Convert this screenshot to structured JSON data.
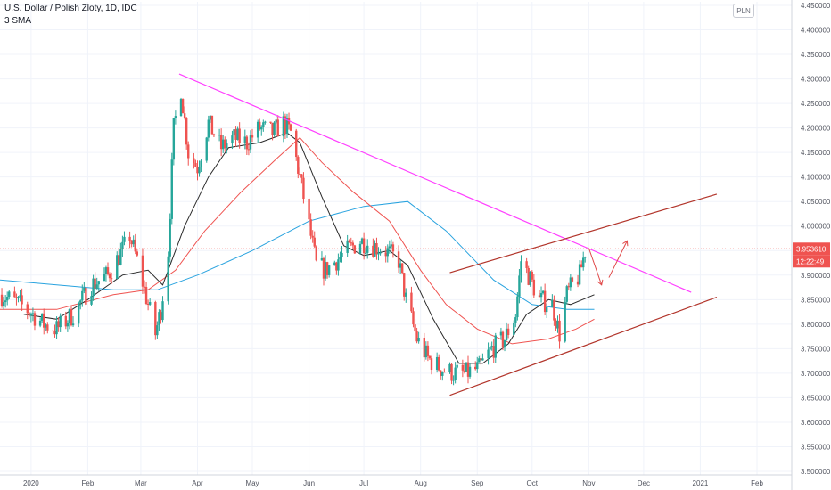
{
  "header": {
    "title": "U.S. Dollar / Polish Zloty, 1D, IDC",
    "study": "3 SMA"
  },
  "currency_button": "PLN",
  "price_badges": {
    "last_price": "3.953610",
    "countdown": "12:22:49"
  },
  "colors": {
    "up": "#26a69a",
    "down": "#ef5350",
    "trendline": "#ff40ff",
    "channel": "#b2352b",
    "sma_fast": "#2a2a2a",
    "sma_mid": "#ef5350",
    "sma_slow": "#29a3df",
    "arrow": "#e04848",
    "last_price_line": "#ef5350"
  },
  "chart_data": {
    "type": "candlestick",
    "title": "U.S. Dollar / Polish Zloty, 1D, IDC",
    "x_ticks": [
      "2020",
      "Feb",
      "Mar",
      "Apr",
      "May",
      "Jun",
      "Jul",
      "Aug",
      "Sep",
      "Oct",
      "Nov",
      "Dec",
      "2021",
      "Feb"
    ],
    "y_ticks": [
      "4.450000",
      "4.400000",
      "4.350000",
      "4.300000",
      "4.250000",
      "4.200000",
      "4.150000",
      "4.100000",
      "4.050000",
      "4.000000",
      "3.950000",
      "3.900000",
      "3.850000",
      "3.800000",
      "3.750000",
      "3.700000",
      "3.650000",
      "3.600000",
      "3.550000",
      "3.500000"
    ],
    "ylim": [
      3.5,
      4.45
    ],
    "xlim": [
      "2019-12-15",
      "2021-02-20"
    ],
    "last_price": 3.95361,
    "close_path": [
      [
        "2019-12-16",
        3.86
      ],
      [
        "2019-12-26",
        3.84
      ],
      [
        "2020-01-02",
        3.82
      ],
      [
        "2020-01-08",
        3.8
      ],
      [
        "2020-01-15",
        3.79
      ],
      [
        "2020-01-24",
        3.82
      ],
      [
        "2020-02-03",
        3.88
      ],
      [
        "2020-02-12",
        3.9
      ],
      [
        "2020-02-20",
        3.95
      ],
      [
        "2020-02-24",
        3.98
      ],
      [
        "2020-02-28",
        3.93
      ],
      [
        "2020-03-03",
        3.87
      ],
      [
        "2020-03-09",
        3.78
      ],
      [
        "2020-03-12",
        3.83
      ],
      [
        "2020-03-16",
        3.95
      ],
      [
        "2020-03-19",
        4.2
      ],
      [
        "2020-03-23",
        4.28
      ],
      [
        "2020-03-27",
        4.15
      ],
      [
        "2020-04-01",
        4.12
      ],
      [
        "2020-04-07",
        4.21
      ],
      [
        "2020-04-14",
        4.16
      ],
      [
        "2020-04-21",
        4.18
      ],
      [
        "2020-04-28",
        4.17
      ],
      [
        "2020-05-05",
        4.2
      ],
      [
        "2020-05-12",
        4.19
      ],
      [
        "2020-05-18",
        4.21
      ],
      [
        "2020-05-22",
        4.19
      ],
      [
        "2020-05-27",
        4.1
      ],
      [
        "2020-06-01",
        4.0
      ],
      [
        "2020-06-05",
        3.92
      ],
      [
        "2020-06-10",
        3.91
      ],
      [
        "2020-06-16",
        3.93
      ],
      [
        "2020-06-22",
        3.95
      ],
      [
        "2020-06-29",
        3.97
      ],
      [
        "2020-07-06",
        3.96
      ],
      [
        "2020-07-13",
        3.95
      ],
      [
        "2020-07-20",
        3.93
      ],
      [
        "2020-07-24",
        3.85
      ],
      [
        "2020-07-30",
        3.77
      ],
      [
        "2020-08-05",
        3.73
      ],
      [
        "2020-08-12",
        3.71
      ],
      [
        "2020-08-19",
        3.7
      ],
      [
        "2020-08-26",
        3.7
      ],
      [
        "2020-09-02",
        3.71
      ],
      [
        "2020-09-09",
        3.75
      ],
      [
        "2020-09-16",
        3.77
      ],
      [
        "2020-09-22",
        3.82
      ],
      [
        "2020-09-25",
        3.93
      ],
      [
        "2020-09-29",
        3.9
      ],
      [
        "2020-10-05",
        3.85
      ],
      [
        "2020-10-12",
        3.84
      ],
      [
        "2020-10-16",
        3.78
      ],
      [
        "2020-10-20",
        3.86
      ],
      [
        "2020-10-23",
        3.88
      ],
      [
        "2020-10-27",
        3.9
      ],
      [
        "2020-10-30",
        3.95
      ]
    ],
    "sma_fast": [
      [
        "2019-12-28",
        3.82
      ],
      [
        "2020-01-15",
        3.81
      ],
      [
        "2020-02-01",
        3.85
      ],
      [
        "2020-02-20",
        3.9
      ],
      [
        "2020-03-05",
        3.91
      ],
      [
        "2020-03-13",
        3.88
      ],
      [
        "2020-03-25",
        4.0
      ],
      [
        "2020-04-07",
        4.1
      ],
      [
        "2020-04-18",
        4.16
      ],
      [
        "2020-05-05",
        4.17
      ],
      [
        "2020-05-20",
        4.19
      ],
      [
        "2020-05-27",
        4.17
      ],
      [
        "2020-06-08",
        4.06
      ],
      [
        "2020-06-20",
        3.96
      ],
      [
        "2020-07-01",
        3.94
      ],
      [
        "2020-07-15",
        3.95
      ],
      [
        "2020-07-25",
        3.92
      ],
      [
        "2020-08-08",
        3.81
      ],
      [
        "2020-08-22",
        3.72
      ],
      [
        "2020-09-04",
        3.72
      ],
      [
        "2020-09-18",
        3.76
      ],
      [
        "2020-09-28",
        3.82
      ],
      [
        "2020-10-10",
        3.85
      ],
      [
        "2020-10-22",
        3.84
      ],
      [
        "2020-11-04",
        3.86
      ]
    ],
    "sma_mid": [
      [
        "2019-12-15",
        3.83
      ],
      [
        "2020-01-15",
        3.83
      ],
      [
        "2020-02-15",
        3.86
      ],
      [
        "2020-03-05",
        3.87
      ],
      [
        "2020-03-20",
        3.91
      ],
      [
        "2020-04-05",
        3.99
      ],
      [
        "2020-04-25",
        4.07
      ],
      [
        "2020-05-15",
        4.14
      ],
      [
        "2020-05-27",
        4.18
      ],
      [
        "2020-06-08",
        4.13
      ],
      [
        "2020-06-25",
        4.07
      ],
      [
        "2020-07-15",
        4.01
      ],
      [
        "2020-08-01",
        3.91
      ],
      [
        "2020-08-15",
        3.84
      ],
      [
        "2020-09-01",
        3.79
      ],
      [
        "2020-09-20",
        3.76
      ],
      [
        "2020-10-10",
        3.77
      ],
      [
        "2020-10-25",
        3.79
      ],
      [
        "2020-11-04",
        3.81
      ]
    ],
    "sma_slow": [
      [
        "2019-12-15",
        3.89
      ],
      [
        "2020-01-15",
        3.88
      ],
      [
        "2020-02-15",
        3.87
      ],
      [
        "2020-03-10",
        3.87
      ],
      [
        "2020-04-01",
        3.9
      ],
      [
        "2020-05-01",
        3.95
      ],
      [
        "2020-06-01",
        4.01
      ],
      [
        "2020-07-01",
        4.04
      ],
      [
        "2020-07-25",
        4.05
      ],
      [
        "2020-08-15",
        3.99
      ],
      [
        "2020-09-10",
        3.89
      ],
      [
        "2020-10-01",
        3.84
      ],
      [
        "2020-10-20",
        3.83
      ],
      [
        "2020-11-04",
        3.83
      ]
    ],
    "drawings": {
      "trendline": [
        [
          "2020-03-22",
          4.31
        ],
        [
          "2020-12-27",
          3.865
        ]
      ],
      "channel_upper": [
        [
          "2020-08-17",
          3.905
        ],
        [
          "2021-01-10",
          4.065
        ]
      ],
      "channel_lower": [
        [
          "2020-08-17",
          3.655
        ],
        [
          "2021-01-10",
          3.855
        ]
      ],
      "arrow_down": [
        [
          "2020-11-01",
          3.955
        ],
        [
          "2020-11-08",
          3.88
        ]
      ],
      "arrow_up": [
        [
          "2020-11-12",
          3.895
        ],
        [
          "2020-11-22",
          3.97
        ]
      ]
    }
  }
}
